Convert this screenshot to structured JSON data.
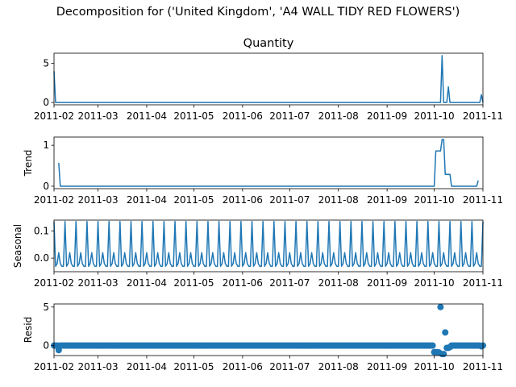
{
  "figure": {
    "suptitle": "Decomposition for ('United Kingdom', 'A4 WALL TIDY RED FLOWERS')"
  },
  "chart_data": [
    {
      "type": "line",
      "title": "Quantity",
      "ylabel": "",
      "x_ticks": [
        "2011-02",
        "2011-03",
        "2011-04",
        "2011-05",
        "2011-06",
        "2011-07",
        "2011-08",
        "2011-09",
        "2011-10",
        "2011-11"
      ],
      "x": [
        "2011-02-01",
        "2011-10-04",
        "2011-10-06",
        "2011-10-08",
        "2011-10-10",
        "2011-10-12",
        "2011-10-31"
      ],
      "y": [
        4,
        0,
        6,
        0,
        2,
        0,
        1
      ],
      "x_range": [
        "2011-02-01",
        "2011-11-01"
      ],
      "ylim": [
        -0.3,
        6.3
      ],
      "y_ticks": [
        0,
        5
      ],
      "color": "#1f77b4"
    },
    {
      "type": "line",
      "title": "",
      "ylabel": "Trend",
      "x_ticks": [
        "2011-02",
        "2011-03",
        "2011-04",
        "2011-05",
        "2011-06",
        "2011-07",
        "2011-08",
        "2011-09",
        "2011-10",
        "2011-11"
      ],
      "x": [
        "2011-02-04",
        "2011-02-05",
        "2011-10-01",
        "2011-10-02",
        "2011-10-05",
        "2011-10-06",
        "2011-10-07",
        "2011-10-08",
        "2011-10-11",
        "2011-10-12",
        "2011-10-28",
        "2011-10-29"
      ],
      "y": [
        0.57,
        0,
        0,
        0.86,
        0.86,
        1.14,
        1.14,
        0.29,
        0.29,
        0,
        0,
        0.14
      ],
      "x_range": [
        "2011-02-01",
        "2011-11-01"
      ],
      "ylim": [
        -0.06,
        1.2
      ],
      "y_ticks": [
        0,
        1
      ],
      "color": "#1f77b4"
    },
    {
      "type": "line",
      "title": "",
      "ylabel": "Seasonal",
      "x_ticks": [
        "2011-02",
        "2011-03",
        "2011-04",
        "2011-05",
        "2011-06",
        "2011-07",
        "2011-08",
        "2011-09",
        "2011-10",
        "2011-11"
      ],
      "period_days": 7,
      "weekly_pattern": [
        0.135,
        -0.03,
        -0.02,
        0.02,
        -0.02,
        -0.03,
        -0.03
      ],
      "x_range": [
        "2011-02-01",
        "2011-11-01"
      ],
      "ylim": [
        -0.05,
        0.14
      ],
      "y_ticks": [
        0.0,
        0.1
      ],
      "color": "#1f77b4"
    },
    {
      "type": "scatter",
      "title": "",
      "ylabel": "Resid",
      "x_ticks": [
        "2011-02",
        "2011-03",
        "2011-04",
        "2011-05",
        "2011-06",
        "2011-07",
        "2011-08",
        "2011-09",
        "2011-10",
        "2011-11"
      ],
      "baseline": 0,
      "x_range": [
        "2011-02-01",
        "2011-11-01"
      ],
      "outliers": [
        {
          "x": "2011-02-04",
          "y": -0.6
        },
        {
          "x": "2011-10-01",
          "y": -0.85
        },
        {
          "x": "2011-10-02",
          "y": -0.85
        },
        {
          "x": "2011-10-03",
          "y": -0.85
        },
        {
          "x": "2011-10-04",
          "y": -0.9
        },
        {
          "x": "2011-10-05",
          "y": 5.0
        },
        {
          "x": "2011-10-06",
          "y": -1.1
        },
        {
          "x": "2011-10-07",
          "y": -1.1
        },
        {
          "x": "2011-10-08",
          "y": 1.7
        },
        {
          "x": "2011-10-09",
          "y": -0.3
        },
        {
          "x": "2011-10-10",
          "y": -0.3
        },
        {
          "x": "2011-10-11",
          "y": -0.2
        },
        {
          "x": "2011-10-31",
          "y": -0.1
        }
      ],
      "ylim": [
        -1.3,
        5.4
      ],
      "y_ticks": [
        0,
        5
      ],
      "color": "#1f77b4"
    }
  ]
}
